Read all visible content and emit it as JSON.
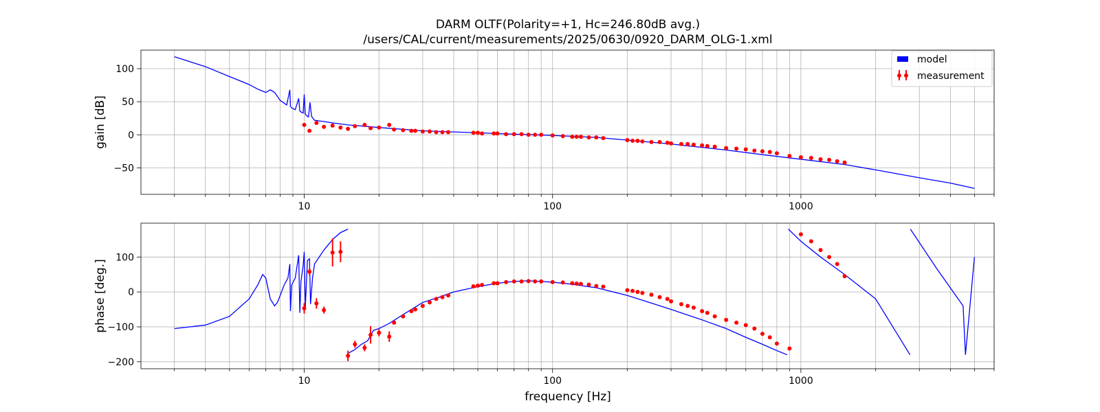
{
  "chart_data": {
    "type": "line",
    "title": "DARM OLTF(Polarity=+1,  Hc=246.80dB avg.)",
    "subtitle": "/users/CAL/current/measurements/2025/0630/0920_DARM_OLG-1.xml",
    "xlabel": "frequency [Hz]",
    "xscale": "log",
    "xlim": [
      2.2,
      6000
    ],
    "x_tick_labels": [
      "10",
      "100",
      "1000"
    ],
    "grid": true,
    "legend": {
      "placement": "top-right",
      "entries": [
        "model",
        "measurement"
      ]
    },
    "colors": {
      "model": "#0000ff",
      "measurement": "#ff0000"
    },
    "panels": [
      {
        "ylabel": "gain [dB]",
        "ylim": [
          -90,
          128
        ],
        "y_ticks": [
          -50,
          0,
          50,
          100
        ],
        "y_tick_labels": [
          "−50",
          "0",
          "50",
          "100"
        ],
        "model": {
          "x": [
            3,
            4,
            5,
            6,
            6.5,
            7,
            7.3,
            7.6,
            8,
            8.5,
            8.75,
            8.8,
            8.95,
            9.2,
            9.5,
            9.6,
            9.75,
            9.9,
            10,
            10.1,
            10.3,
            10.4,
            10.55,
            10.7,
            11,
            12,
            13,
            15,
            20,
            30,
            50,
            70,
            100,
            150,
            200,
            300,
            400,
            500,
            700,
            1000,
            1500,
            2000,
            3000,
            4000,
            5000
          ],
          "y": [
            118,
            103,
            88,
            76,
            69,
            64,
            68,
            64,
            52,
            45,
            68,
            43,
            40,
            38,
            55,
            36,
            34,
            33,
            61,
            31,
            28,
            27,
            49,
            28,
            22,
            20,
            18,
            15,
            11,
            6,
            3,
            1,
            -1,
            -4,
            -8,
            -14,
            -19,
            -23,
            -30,
            -37,
            -45,
            -53,
            -65,
            -73,
            -81
          ]
        },
        "measurement": {
          "x": [
            10,
            10.5,
            11.2,
            12,
            13,
            14,
            15,
            16,
            17.5,
            18.5,
            20,
            22,
            23,
            25,
            27,
            28,
            30,
            32,
            34,
            36,
            38,
            48,
            50,
            52,
            58,
            60,
            65,
            70,
            75,
            80,
            85,
            90,
            100,
            110,
            120,
            125,
            130,
            140,
            150,
            160,
            200,
            210,
            220,
            230,
            250,
            270,
            290,
            300,
            330,
            350,
            370,
            400,
            420,
            450,
            500,
            550,
            600,
            650,
            700,
            750,
            800,
            900,
            1000,
            1100,
            1200,
            1300,
            1400,
            1500
          ],
          "y": [
            15,
            6,
            18,
            12,
            14,
            11,
            9,
            13,
            15,
            10,
            11,
            15,
            8,
            7,
            6,
            6,
            5,
            5,
            4,
            4,
            4,
            3,
            3,
            2,
            2,
            2,
            1,
            1,
            1,
            0,
            0,
            0,
            -1,
            -2,
            -3,
            -3,
            -3,
            -4,
            -4,
            -5,
            -8,
            -9,
            -9,
            -10,
            -11,
            -11,
            -12,
            -13,
            -14,
            -14,
            -15,
            -16,
            -17,
            -18,
            -20,
            -21,
            -22,
            -24,
            -25,
            -26,
            -28,
            -32,
            -34,
            -35,
            -37,
            -38,
            -40,
            -42
          ],
          "err": [
            1,
            1,
            1,
            1,
            1,
            1,
            1,
            1,
            1,
            1,
            1,
            1,
            0.5,
            0.5,
            0.5,
            0.5,
            0.5,
            0.5,
            0.5,
            0.5,
            0.5,
            0.5,
            0.5,
            0.5,
            0.5,
            0.5,
            0.5,
            0.5,
            0.5,
            0.5,
            0.5,
            0.5,
            0.5,
            0.5,
            0.5,
            0.5,
            0.5,
            0.5,
            0.5,
            0.5,
            0.5,
            0.5,
            0.5,
            0.5,
            0.5,
            0.5,
            0.5,
            0.5,
            0.5,
            0.5,
            0.5,
            0.5,
            0.5,
            0.5,
            0.5,
            0.5,
            0.5,
            0.5,
            0.5,
            0.5,
            0.5,
            0.5,
            0.5,
            0.5,
            0.5,
            0.5,
            0.5,
            0.5
          ]
        }
      },
      {
        "ylabel": "phase [deg.]",
        "ylim": [
          -220,
          197
        ],
        "y_ticks": [
          -200,
          -100,
          0,
          100
        ],
        "y_tick_labels": [
          "−200",
          "−100",
          "0",
          "100"
        ],
        "model": {
          "x": [
            3,
            4,
            5,
            6,
            6.5,
            6.8,
            7,
            7.3,
            7.6,
            7.8,
            8,
            8.3,
            8.6,
            8.75,
            8.8,
            8.9,
            9.2,
            9.5,
            9.6,
            9.7,
            9.9,
            10,
            10.1,
            10.3,
            10.5,
            10.6,
            10.8,
            11,
            12,
            13,
            14,
            15,
            15.1,
            16,
            17,
            18,
            19,
            20,
            22,
            25,
            30,
            35,
            40,
            50,
            60,
            70,
            80,
            90,
            100,
            120,
            150,
            200,
            250,
            300,
            400,
            500,
            600,
            700,
            800,
            880,
            890,
            1000,
            1200,
            1500,
            2000,
            2750,
            2760,
            3500,
            4500,
            4600,
            5000
          ],
          "y": [
            -105,
            -95,
            -70,
            -20,
            20,
            50,
            40,
            -20,
            -40,
            -30,
            -10,
            20,
            40,
            80,
            -55,
            20,
            40,
            105,
            -60,
            30,
            75,
            115,
            -45,
            90,
            95,
            -35,
            40,
            80,
            120,
            150,
            170,
            180,
            -175,
            -165,
            -150,
            -140,
            -110,
            -105,
            -90,
            -65,
            -30,
            -15,
            0,
            15,
            25,
            30,
            32,
            30,
            28,
            22,
            12,
            -10,
            -32,
            -50,
            -80,
            -105,
            -130,
            -150,
            -168,
            -180,
            180,
            145,
            100,
            50,
            -20,
            -180,
            180,
            70,
            -40,
            -180,
            100
          ]
        },
        "measurement": {
          "x": [
            10,
            10.5,
            11.2,
            12,
            13,
            14,
            15,
            16,
            17.5,
            18.5,
            20,
            22,
            23,
            25,
            27,
            28,
            30,
            32,
            34,
            36,
            38,
            48,
            50,
            52,
            58,
            60,
            65,
            70,
            75,
            80,
            85,
            90,
            100,
            110,
            120,
            125,
            130,
            140,
            150,
            160,
            200,
            210,
            220,
            230,
            250,
            270,
            290,
            300,
            330,
            350,
            370,
            400,
            420,
            450,
            500,
            550,
            600,
            650,
            700,
            750,
            800,
            900,
            1000,
            1100,
            1200,
            1300,
            1400,
            1500
          ],
          "y": [
            -47,
            58,
            -33,
            -52,
            113,
            115,
            -183,
            -150,
            -160,
            -123,
            -117,
            -128,
            -88,
            -70,
            -55,
            -50,
            -40,
            -30,
            -20,
            -15,
            -10,
            16,
            18,
            20,
            25,
            25,
            28,
            30,
            30,
            31,
            30,
            30,
            28,
            27,
            25,
            24,
            23,
            21,
            17,
            15,
            5,
            3,
            0,
            -3,
            -8,
            -15,
            -20,
            -27,
            -35,
            -40,
            -45,
            -55,
            -60,
            -70,
            -80,
            -88,
            -95,
            -105,
            -120,
            -130,
            -148,
            -162,
            165,
            145,
            120,
            100,
            80,
            45
          ],
          "err": [
            15,
            10,
            15,
            10,
            40,
            30,
            15,
            10,
            10,
            25,
            10,
            15,
            5,
            5,
            5,
            5,
            3,
            3,
            3,
            3,
            3,
            3,
            3,
            3,
            3,
            3,
            3,
            3,
            3,
            3,
            3,
            3,
            3,
            3,
            3,
            3,
            3,
            3,
            3,
            3,
            3,
            3,
            3,
            3,
            3,
            3,
            3,
            3,
            3,
            3,
            3,
            3,
            3,
            3,
            3,
            3,
            3,
            3,
            3,
            3,
            3,
            3,
            3,
            3,
            3,
            3,
            3,
            3
          ]
        }
      }
    ]
  }
}
